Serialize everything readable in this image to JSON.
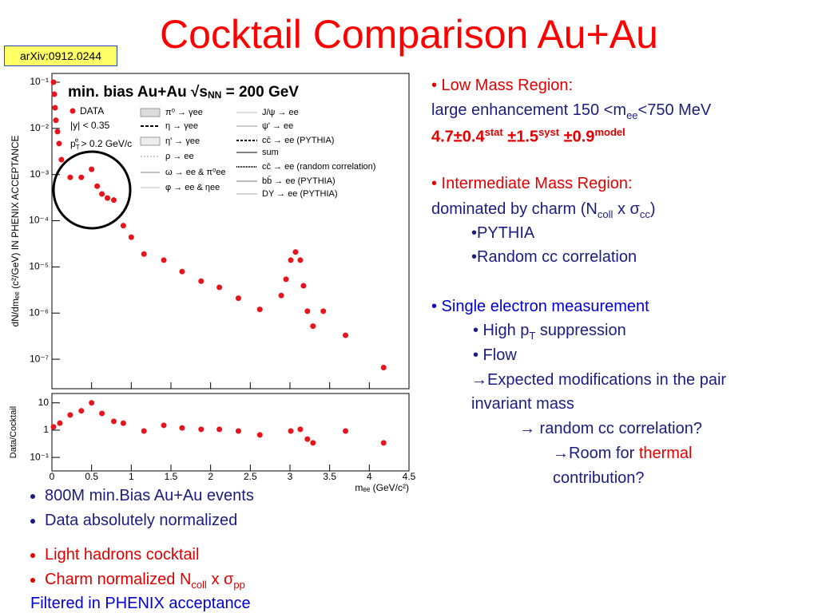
{
  "header": {
    "title": "Cocktail Comparison Au+Au",
    "tag": "arXiv:0912.0244"
  },
  "chart_data": [
    {
      "type": "scatter",
      "log_y": true,
      "y_label": "dN/dmₑₑ (c²/GeV) IN PHENIX ACCEPTANCE",
      "legend_header": [
        "min. bias Au+Au ",
        "√s",
        "NN",
        " = 200 GeV"
      ],
      "cuts": [
        [
          "|y| < 0.35"
        ],
        [
          "p",
          "T",
          "e",
          " > 0.2 GeV/c"
        ]
      ],
      "cocktail": [
        "π⁰ → γee",
        "η → γee",
        "η' → γee",
        "ρ → ee",
        "ω → ee & π⁰ee",
        "φ → ee & ηee",
        "J/ψ → ee",
        "ψ' → ee",
        "cc̄ → ee (PYTHIA)",
        "sum",
        "cc̄ → ee (random correlation)",
        "bb̄ → ee (PYTHIA)",
        "DY → ee (PYTHIA)"
      ],
      "xlim": [
        0,
        4.5
      ],
      "ylim": [
        2.3e-08,
        0.155
      ],
      "yticks": [
        {
          "value": 1e-07,
          "label": "10⁻⁷"
        },
        {
          "value": 1e-06,
          "label": "10⁻⁶"
        },
        {
          "value": 1e-05,
          "label": "10⁻⁵"
        },
        {
          "value": 0.0001,
          "label": "10⁻⁴"
        },
        {
          "value": 0.001,
          "label": "10⁻³"
        },
        {
          "value": 0.01,
          "label": "10⁻²"
        },
        {
          "value": 0.1,
          "label": "10⁻¹"
        }
      ],
      "x": [
        0.02,
        0.03,
        0.04,
        0.05,
        0.07,
        0.09,
        0.12,
        0.23,
        0.37,
        0.5,
        0.57,
        0.63,
        0.7,
        0.78,
        0.9,
        1.0,
        1.16,
        1.41,
        1.64,
        1.88,
        2.11,
        2.35,
        2.62,
        2.89,
        2.95,
        3.01,
        3.07,
        3.13,
        3.17,
        3.22,
        3.29,
        3.42,
        3.7,
        4.18
      ],
      "series": [
        {
          "name": "DATA",
          "color": "#e8141b",
          "values": [
            0.1,
            0.055,
            0.028,
            0.015,
            0.0085,
            0.0047,
            0.0021,
            0.00087,
            0.00087,
            0.0013,
            0.00056,
            0.00038,
            0.00031,
            0.00028,
            7.8e-05,
            4.4e-05,
            1.9e-05,
            1.4e-05,
            7.9e-06,
            4.9e-06,
            3.6e-06,
            2.1e-06,
            1.2e-06,
            2.4e-06,
            5.4e-06,
            1.4e-05,
            2.1e-05,
            1.4e-05,
            3.9e-06,
            1.1e-06,
            5.2e-07,
            1.1e-06,
            3.3e-07,
            6.6e-08
          ]
        }
      ]
    },
    {
      "type": "scatter",
      "log_y": true,
      "y_label": "Data/Cocktail",
      "x_label": "mₑₑ (GeV/c²)",
      "xlim": [
        0,
        4.5
      ],
      "xticks": [
        0,
        0.5,
        1,
        1.5,
        2,
        2.5,
        3,
        3.5,
        4,
        4.5
      ],
      "ylim": [
        0.032,
        22
      ],
      "yticks": [
        {
          "value": 0.1,
          "label": "10⁻¹"
        },
        1,
        10
      ],
      "x": [
        0.02,
        0.1,
        0.23,
        0.37,
        0.5,
        0.63,
        0.78,
        0.9,
        1.16,
        1.41,
        1.64,
        1.88,
        2.11,
        2.35,
        2.62,
        3.01,
        3.13,
        3.22,
        3.29,
        3.7,
        4.18
      ],
      "color": "#e8141b",
      "values": [
        1.31,
        1.8,
        3.6,
        5.1,
        10,
        4.1,
        2.1,
        1.8,
        0.93,
        1.5,
        1.2,
        1.07,
        1.07,
        0.93,
        0.67,
        0.93,
        1.07,
        0.47,
        0.34,
        0.93,
        0.34
      ]
    }
  ],
  "notes": {
    "low_mass": {
      "heading": "• Low Mass Region:",
      "text": [
        "large enhancement 150 <m",
        "ee",
        "<750 MeV"
      ],
      "result": [
        "4.7±0.4",
        "stat",
        " ±1.5",
        "syst",
        " ±0.9",
        "model"
      ]
    },
    "intermediate": {
      "heading": "• Intermediate Mass Region:",
      "text": [
        "dominated by charm (N",
        "coll",
        " x ",
        "σ",
        "cc",
        ")"
      ],
      "items": [
        "•PYTHIA",
        "•Random cc correlation"
      ]
    },
    "single_electron": {
      "heading": "• Single electron measurement",
      "items": [
        [
          "• High p",
          "T",
          " suppression"
        ],
        [
          "• Flow"
        ],
        [
          "→Expected modifications in the pair"
        ],
        [
          "invariant mass"
        ],
        [
          "→ random cc correlation?"
        ],
        [
          "→Room for ",
          "thermal"
        ],
        [
          "contribution?"
        ]
      ]
    }
  },
  "summary": {
    "items": [
      "800M min.Bias Au+Au events",
      "Data absolutely normalized"
    ],
    "cocktail": [
      [
        "Light hadrons cocktail"
      ],
      [
        "Charm normalized N",
        "coll",
        " x ",
        "σ",
        "pp"
      ]
    ],
    "footer": "Filtered in PHENIX acceptance"
  }
}
